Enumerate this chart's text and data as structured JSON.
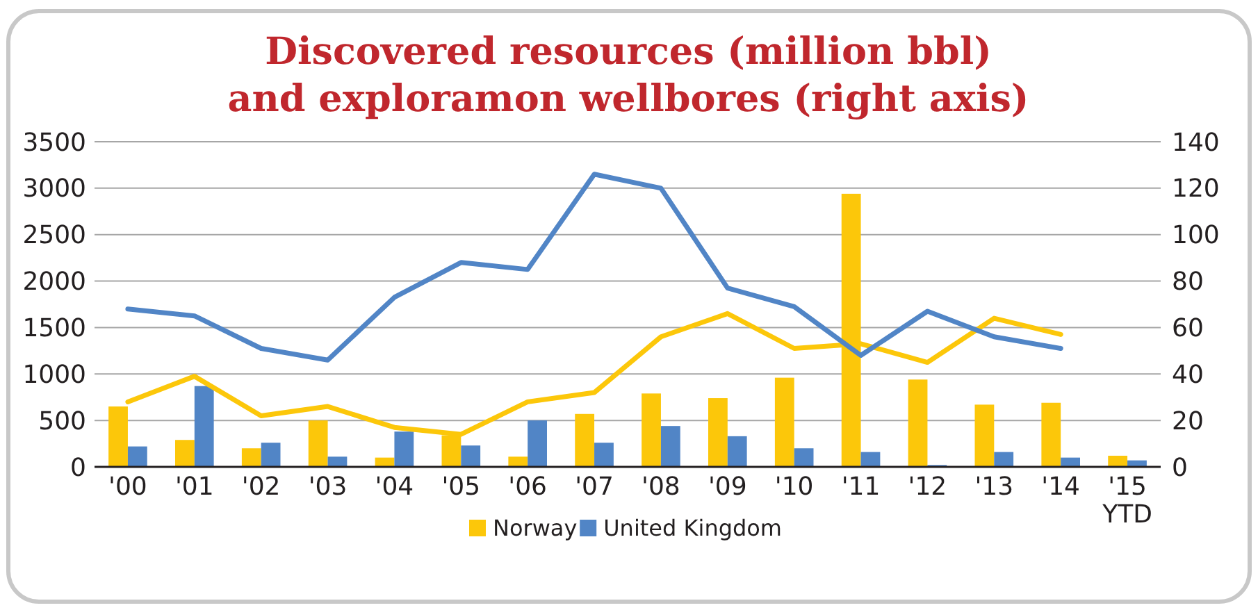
{
  "chart_data": {
    "type": "bar",
    "title": "Discovered resources (million bbl)\nand exploramon wellbores (right axis)",
    "categories": [
      "'00",
      "'01",
      "'02",
      "'03",
      "'04",
      "'05",
      "'06",
      "'07",
      "'08",
      "'09",
      "'10",
      "'11",
      "'12",
      "'13",
      "'14",
      "'15\nYTD"
    ],
    "series": [
      {
        "name": "Norway",
        "color": "#fcc70a",
        "values": [
          650,
          290,
          200,
          500,
          100,
          340,
          110,
          570,
          790,
          740,
          960,
          2940,
          940,
          670,
          690,
          120
        ]
      },
      {
        "name": "United Kingdom",
        "color": "#5185c6",
        "values": [
          220,
          870,
          260,
          110,
          380,
          230,
          500,
          260,
          440,
          330,
          200,
          160,
          20,
          160,
          100,
          70
        ]
      },
      {
        "type": "line",
        "axis": "y2",
        "color": "#fcc70a",
        "values": [
          28,
          39,
          22,
          26,
          17,
          14,
          28,
          32,
          56,
          66,
          51,
          53,
          45,
          64,
          57,
          null
        ]
      },
      {
        "type": "line",
        "axis": "y2",
        "color": "#5185c6",
        "values": [
          68,
          65,
          51,
          46,
          73,
          88,
          85,
          126,
          120,
          77,
          69,
          48,
          67,
          56,
          51,
          null
        ]
      }
    ],
    "ylim": [
      0,
      3500
    ],
    "yticks": [
      0,
      500,
      1000,
      1500,
      2000,
      2500,
      3000,
      3500
    ],
    "y2lim": [
      0,
      140
    ],
    "y2ticks": [
      0,
      20,
      40,
      60,
      80,
      100,
      120,
      140
    ],
    "grid": "y",
    "legend": "bottom"
  }
}
